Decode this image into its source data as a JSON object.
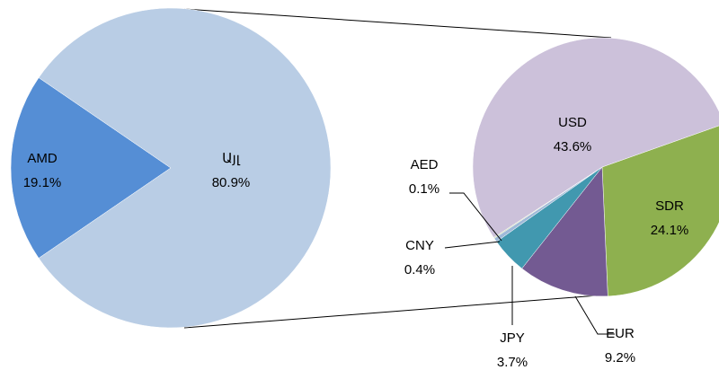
{
  "chart_data": [
    {
      "type": "pie",
      "categories": [
        "AMD",
        "Այլ"
      ],
      "values": [
        19.1,
        80.9
      ],
      "value_labels": [
        "19.1%",
        "80.9%"
      ],
      "colors": [
        "#558ed5",
        "#b9cde5"
      ]
    },
    {
      "type": "pie",
      "categories": [
        "SDR",
        "EUR",
        "JPY",
        "CNY",
        "AED",
        "USD"
      ],
      "values": [
        24.1,
        9.2,
        3.7,
        0.4,
        0.1,
        43.6
      ],
      "value_labels": [
        "24.1%",
        "9.2%",
        "3.7%",
        "0.4%",
        "0.1%",
        "43.6%"
      ],
      "colors": [
        "#8eb04f",
        "#735a92",
        "#4198af",
        "#9fb9d8",
        "#c8d8a8",
        "#ccc1da"
      ]
    }
  ]
}
